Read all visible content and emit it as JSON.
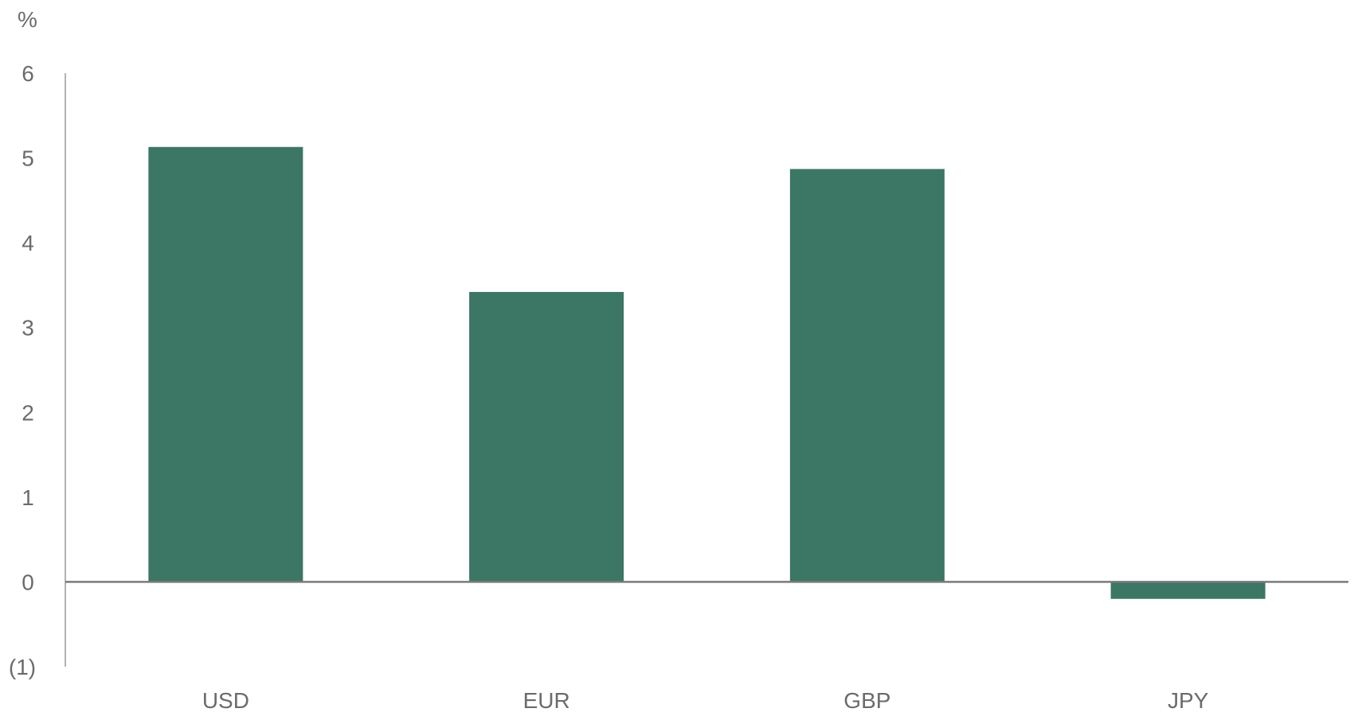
{
  "chart_data": {
    "type": "bar",
    "categories": [
      "USD",
      "EUR",
      "GBP",
      "JPY"
    ],
    "values": [
      5.13,
      3.42,
      4.87,
      -0.2
    ],
    "title": "",
    "xlabel": "",
    "ylabel": "%",
    "ylim": [
      -1,
      6
    ],
    "yticks": [
      6,
      5,
      4,
      3,
      2,
      1,
      0,
      -1
    ],
    "ytick_labels": [
      "6",
      "5",
      "4",
      "3",
      "2",
      "1",
      "0",
      "(1)"
    ],
    "grid": false,
    "legend": "none",
    "bar_color": "#3c7664"
  }
}
